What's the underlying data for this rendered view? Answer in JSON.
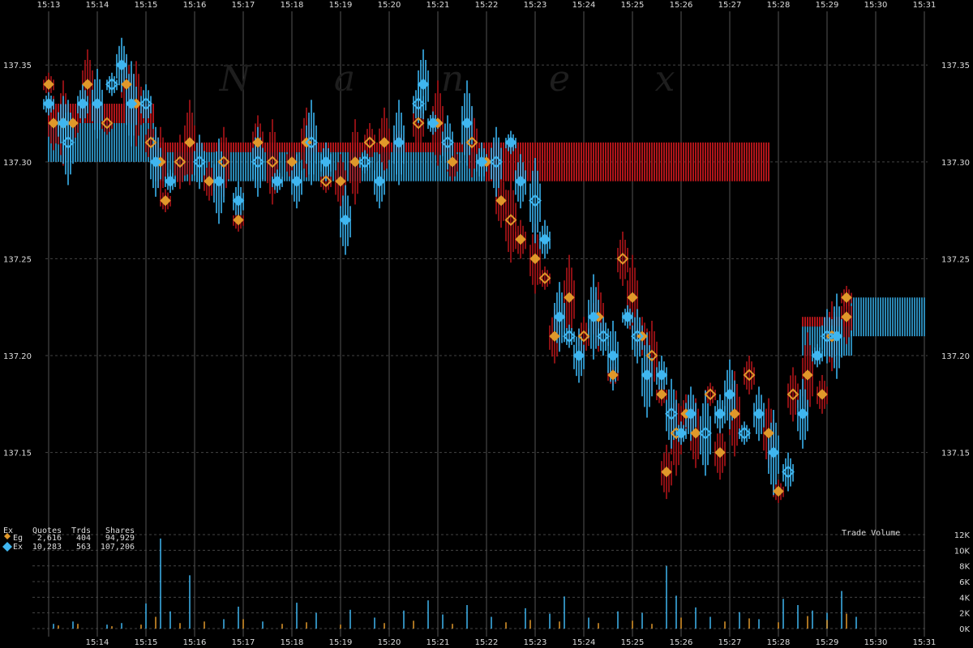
{
  "watermark": [
    "N",
    "a",
    "n",
    "e",
    "x"
  ],
  "legend": {
    "headers": [
      "Ex",
      "Quotes",
      "Trds",
      "Shares"
    ],
    "rows": [
      {
        "ex": "Eg",
        "quotes": "2,616",
        "trds": "404",
        "shares": "94,929",
        "color": "#E0982A"
      },
      {
        "ex": "Ex",
        "quotes": "10,283",
        "trds": "563",
        "shares": "107,206",
        "color": "#3FB6F0"
      }
    ]
  },
  "volume_title": "Trade Volume",
  "colors": {
    "bid": "#B0151A",
    "ask": "#39B3EE",
    "eg": "#E0982A",
    "ex": "#3FB6F0",
    "grid": "#555555"
  },
  "chart_data": [
    {
      "type": "scatter",
      "title": "",
      "x_ticks": [
        "15:13",
        "15:14",
        "15:15",
        "15:16",
        "15:17",
        "15:18",
        "15:19",
        "15:20",
        "15:21",
        "15:22",
        "15:23",
        "15:24",
        "15:25",
        "15:26",
        "15:27",
        "15:28",
        "15:29",
        "15:30",
        "15:31"
      ],
      "y_ticks": [
        "137.35",
        "137.30",
        "137.25",
        "137.20",
        "137.15"
      ],
      "ylim": [
        137.116,
        137.376
      ],
      "xlim": [
        "15:13",
        "15:31"
      ],
      "grid": true,
      "legend_position": "bottom-left",
      "series": [
        {
          "name": "Eg",
          "color": "#E0982A",
          "points": [
            [
              "15:13.0",
              137.34
            ],
            [
              "15:13.1",
              137.32
            ],
            [
              "15:13.3",
              137.32
            ],
            [
              "15:13.5",
              137.32
            ],
            [
              "15:13.8",
              137.34
            ],
            [
              "15:14.2",
              137.32
            ],
            [
              "15:14.6",
              137.34
            ],
            [
              "15:14.8",
              137.33
            ],
            [
              "15:15.1",
              137.31
            ],
            [
              "15:15.3",
              137.3
            ],
            [
              "15:15.4",
              137.28
            ],
            [
              "15:15.7",
              137.3
            ],
            [
              "15:15.9",
              137.31
            ],
            [
              "15:16.3",
              137.29
            ],
            [
              "15:16.6",
              137.3
            ],
            [
              "15:16.9",
              137.27
            ],
            [
              "15:17.3",
              137.31
            ],
            [
              "15:17.6",
              137.3
            ],
            [
              "15:18.0",
              137.3
            ],
            [
              "15:18.3",
              137.31
            ],
            [
              "15:18.7",
              137.29
            ],
            [
              "15:19.0",
              137.29
            ],
            [
              "15:19.3",
              137.3
            ],
            [
              "15:19.6",
              137.31
            ],
            [
              "15:19.9",
              137.31
            ],
            [
              "15:20.2",
              137.31
            ],
            [
              "15:20.6",
              137.32
            ],
            [
              "15:21.0",
              137.32
            ],
            [
              "15:21.3",
              137.3
            ],
            [
              "15:21.7",
              137.31
            ],
            [
              "15:22.0",
              137.3
            ],
            [
              "15:22.3",
              137.28
            ],
            [
              "15:22.5",
              137.27
            ],
            [
              "15:22.7",
              137.26
            ],
            [
              "15:23.0",
              137.25
            ],
            [
              "15:23.2",
              137.24
            ],
            [
              "15:23.4",
              137.21
            ],
            [
              "15:23.7",
              137.23
            ],
            [
              "15:24.0",
              137.21
            ],
            [
              "15:24.3",
              137.22
            ],
            [
              "15:24.6",
              137.19
            ],
            [
              "15:24.8",
              137.25
            ],
            [
              "15:25.0",
              137.23
            ],
            [
              "15:25.2",
              137.21
            ],
            [
              "15:25.4",
              137.2
            ],
            [
              "15:25.6",
              137.18
            ],
            [
              "15:25.7",
              137.14
            ],
            [
              "15:25.9",
              137.16
            ],
            [
              "15:26.1",
              137.17
            ],
            [
              "15:26.3",
              137.16
            ],
            [
              "15:26.6",
              137.18
            ],
            [
              "15:26.8",
              137.15
            ],
            [
              "15:27.1",
              137.17
            ],
            [
              "15:27.4",
              137.19
            ],
            [
              "15:27.8",
              137.16
            ],
            [
              "15:28.0",
              137.13
            ],
            [
              "15:28.3",
              137.18
            ],
            [
              "15:28.6",
              137.19
            ],
            [
              "15:28.9",
              137.18
            ],
            [
              "15:29.1",
              137.21
            ],
            [
              "15:29.4",
              137.23
            ],
            [
              "15:29.4",
              137.22
            ]
          ]
        },
        {
          "name": "Ex",
          "color": "#3FB6F0",
          "points": [
            [
              "15:13.0",
              137.33
            ],
            [
              "15:13.3",
              137.32
            ],
            [
              "15:13.4",
              137.31
            ],
            [
              "15:13.7",
              137.33
            ],
            [
              "15:14.0",
              137.33
            ],
            [
              "15:14.3",
              137.34
            ],
            [
              "15:14.5",
              137.35
            ],
            [
              "15:14.7",
              137.33
            ],
            [
              "15:15.0",
              137.33
            ],
            [
              "15:15.2",
              137.3
            ],
            [
              "15:15.5",
              137.29
            ],
            [
              "15:16.1",
              137.3
            ],
            [
              "15:16.5",
              137.29
            ],
            [
              "15:16.9",
              137.28
            ],
            [
              "15:17.3",
              137.3
            ],
            [
              "15:17.7",
              137.29
            ],
            [
              "15:18.1",
              137.29
            ],
            [
              "15:18.4",
              137.31
            ],
            [
              "15:18.7",
              137.3
            ],
            [
              "15:19.1",
              137.27
            ],
            [
              "15:19.5",
              137.3
            ],
            [
              "15:19.8",
              137.29
            ],
            [
              "15:20.2",
              137.31
            ],
            [
              "15:20.6",
              137.33
            ],
            [
              "15:20.7",
              137.34
            ],
            [
              "15:20.9",
              137.32
            ],
            [
              "15:21.2",
              137.31
            ],
            [
              "15:21.6",
              137.32
            ],
            [
              "15:21.9",
              137.3
            ],
            [
              "15:22.2",
              137.3
            ],
            [
              "15:22.5",
              137.31
            ],
            [
              "15:22.7",
              137.29
            ],
            [
              "15:23.0",
              137.28
            ],
            [
              "15:23.2",
              137.26
            ],
            [
              "15:23.5",
              137.22
            ],
            [
              "15:23.7",
              137.21
            ],
            [
              "15:23.9",
              137.2
            ],
            [
              "15:24.2",
              137.22
            ],
            [
              "15:24.4",
              137.21
            ],
            [
              "15:24.6",
              137.2
            ],
            [
              "15:24.9",
              137.22
            ],
            [
              "15:25.1",
              137.21
            ],
            [
              "15:25.3",
              137.19
            ],
            [
              "15:25.6",
              137.19
            ],
            [
              "15:25.8",
              137.17
            ],
            [
              "15:26.0",
              137.16
            ],
            [
              "15:26.2",
              137.17
            ],
            [
              "15:26.5",
              137.16
            ],
            [
              "15:26.8",
              137.17
            ],
            [
              "15:27.0",
              137.18
            ],
            [
              "15:27.3",
              137.16
            ],
            [
              "15:27.6",
              137.17
            ],
            [
              "15:27.9",
              137.15
            ],
            [
              "15:28.2",
              137.14
            ],
            [
              "15:28.5",
              137.17
            ],
            [
              "15:28.8",
              137.2
            ],
            [
              "15:29.0",
              137.21
            ],
            [
              "15:29.2",
              137.21
            ]
          ]
        }
      ],
      "nbbo_bands": [
        {
          "from": "15:13.0",
          "to": "15:15.2",
          "bid": 137.3,
          "ask": 137.33
        },
        {
          "from": "15:15.2",
          "to": "15:22.0",
          "bid": 137.29,
          "ask": 137.31
        },
        {
          "from": "15:22.0",
          "to": "15:27.8",
          "bid": 137.29,
          "ask": 137.31,
          "only_bid": true
        },
        {
          "from": "15:28.5",
          "to": "15:29.5",
          "bid": 137.2,
          "ask": 137.22
        },
        {
          "from": "15:29.5",
          "to": "15:31.0",
          "bid": 137.22,
          "ask": 137.23,
          "bid_low": 137.21
        }
      ]
    },
    {
      "type": "bar",
      "title": "Trade Volume",
      "y_ticks": [
        "12K",
        "10K",
        "8K",
        "6K",
        "4K",
        "2K",
        "0K"
      ],
      "ylim": [
        0,
        12000
      ],
      "x_ticks": [
        "15:14",
        "15:15",
        "15:16",
        "15:17",
        "15:18",
        "15:19",
        "15:20",
        "15:21",
        "15:22",
        "15:23",
        "15:24",
        "15:25",
        "15:26",
        "15:27",
        "15:28",
        "15:29",
        "15:30",
        "15:31"
      ],
      "series": [
        {
          "name": "Ex",
          "color": "#3FB6F0",
          "points": [
            [
              "15:13.1",
              600
            ],
            [
              "15:13.5",
              900
            ],
            [
              "15:14.2",
              500
            ],
            [
              "15:14.5",
              700
            ],
            [
              "15:15.0",
              3200
            ],
            [
              "15:15.3",
              11500
            ],
            [
              "15:15.5",
              2200
            ],
            [
              "15:15.9",
              6800
            ],
            [
              "15:16.6",
              1200
            ],
            [
              "15:16.9",
              2800
            ],
            [
              "15:17.4",
              900
            ],
            [
              "15:18.1",
              3300
            ],
            [
              "15:18.5",
              2000
            ],
            [
              "15:19.2",
              2400
            ],
            [
              "15:19.7",
              1400
            ],
            [
              "15:20.3",
              2300
            ],
            [
              "15:20.8",
              3600
            ],
            [
              "15:21.1",
              1800
            ],
            [
              "15:21.6",
              3000
            ],
            [
              "15:22.1",
              1500
            ],
            [
              "15:22.8",
              2600
            ],
            [
              "15:23.3",
              1900
            ],
            [
              "15:23.6",
              4100
            ],
            [
              "15:24.1",
              1400
            ],
            [
              "15:24.7",
              2200
            ],
            [
              "15:25.2",
              2000
            ],
            [
              "15:25.7",
              8000
            ],
            [
              "15:25.9",
              4200
            ],
            [
              "15:26.3",
              2700
            ],
            [
              "15:26.6",
              1500
            ],
            [
              "15:27.2",
              2100
            ],
            [
              "15:27.6",
              1200
            ],
            [
              "15:28.1",
              3800
            ],
            [
              "15:28.4",
              3000
            ],
            [
              "15:28.7",
              2300
            ],
            [
              "15:29.0",
              2000
            ],
            [
              "15:29.3",
              4800
            ],
            [
              "15:29.6",
              1500
            ]
          ]
        },
        {
          "name": "Eg",
          "color": "#E0982A",
          "points": [
            [
              "15:13.2",
              400
            ],
            [
              "15:13.6",
              600
            ],
            [
              "15:14.3",
              300
            ],
            [
              "15:14.9",
              500
            ],
            [
              "15:15.2",
              1500
            ],
            [
              "15:15.7",
              700
            ],
            [
              "15:16.2",
              900
            ],
            [
              "15:17.0",
              1200
            ],
            [
              "15:17.8",
              600
            ],
            [
              "15:18.3",
              800
            ],
            [
              "15:19.0",
              500
            ],
            [
              "15:19.9",
              700
            ],
            [
              "15:20.5",
              1000
            ],
            [
              "15:21.3",
              600
            ],
            [
              "15:22.4",
              800
            ],
            [
              "15:22.9",
              1100
            ],
            [
              "15:23.5",
              900
            ],
            [
              "15:24.3",
              700
            ],
            [
              "15:25.0",
              1000
            ],
            [
              "15:25.4",
              600
            ],
            [
              "15:26.0",
              1400
            ],
            [
              "15:26.9",
              900
            ],
            [
              "15:27.4",
              1300
            ],
            [
              "15:28.0",
              800
            ],
            [
              "15:28.6",
              1600
            ],
            [
              "15:29.0",
              1100
            ],
            [
              "15:29.4",
              1900
            ]
          ]
        }
      ]
    }
  ]
}
